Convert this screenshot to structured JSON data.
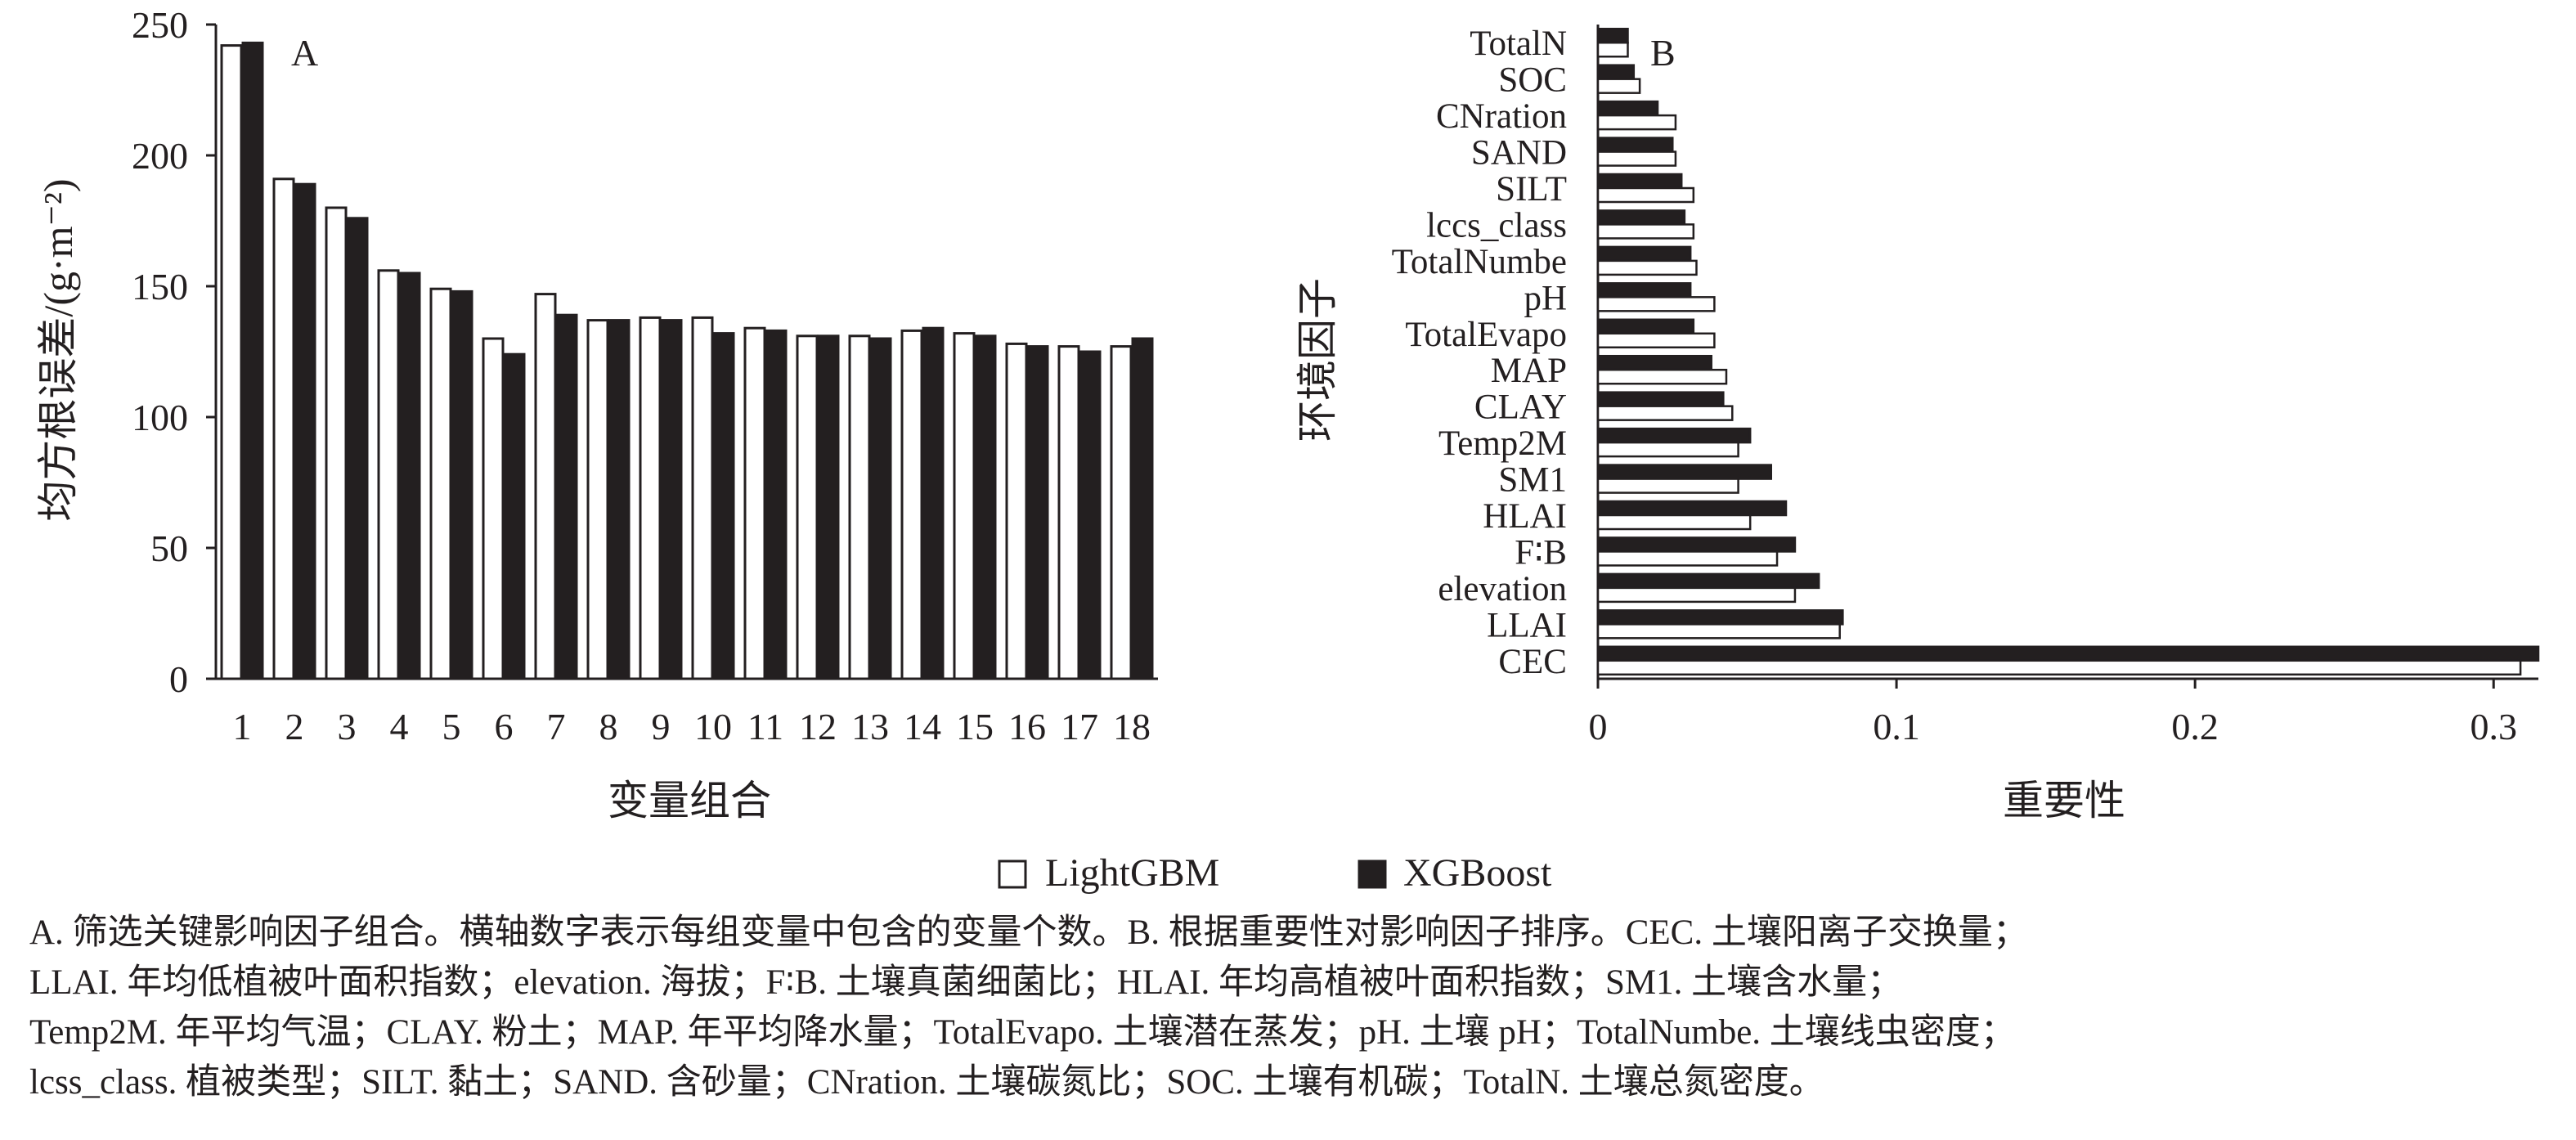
{
  "chart_data": [
    {
      "type": "bar",
      "panel_label": "A",
      "xlabel": "变量组合",
      "ylabel": "均方根误差/(g·m⁻²)",
      "categories": [
        "1",
        "2",
        "3",
        "4",
        "5",
        "6",
        "7",
        "8",
        "9",
        "10",
        "11",
        "12",
        "13",
        "14",
        "15",
        "16",
        "17",
        "18"
      ],
      "ylim": [
        0,
        250
      ],
      "yticks": [
        "0",
        "50",
        "100",
        "150",
        "200",
        "250"
      ],
      "series": [
        {
          "name": "LightGBM",
          "color": "#ffffff",
          "values": [
            242,
            191,
            180,
            156,
            149,
            130,
            147,
            137,
            138,
            138,
            134,
            131,
            131,
            133,
            132,
            128,
            127,
            127
          ]
        },
        {
          "name": "XGBoost",
          "color": "#231f20",
          "values": [
            243,
            189,
            176,
            155,
            148,
            124,
            139,
            137,
            137,
            132,
            133,
            131,
            130,
            134,
            131,
            127,
            125,
            130
          ]
        }
      ]
    },
    {
      "type": "bar",
      "orientation": "horizontal",
      "panel_label": "B",
      "xlabel": "重要性",
      "ylabel": "环境因子",
      "categories": [
        "TotalN",
        "SOC",
        "CNration",
        "SAND",
        "SILT",
        "lccs_class",
        "TotalNumbe",
        "pH",
        "TotalEvapo",
        "MAP",
        "CLAY",
        "Temp2M",
        "SM1",
        "HLAI",
        "F∶B",
        "elevation",
        "LLAI",
        "CEC"
      ],
      "xlim": [
        0,
        0.315
      ],
      "xticks": [
        "0",
        "0.1",
        "0.2",
        "0.3"
      ],
      "series": [
        {
          "name": "XGBoost",
          "color": "#231f20",
          "values": [
            0.01,
            0.012,
            0.02,
            0.025,
            0.028,
            0.029,
            0.031,
            0.031,
            0.032,
            0.038,
            0.042,
            0.051,
            0.058,
            0.063,
            0.066,
            0.074,
            0.082,
            0.315
          ]
        },
        {
          "name": "LightGBM",
          "color": "#ffffff",
          "values": [
            0.01,
            0.014,
            0.026,
            0.026,
            0.032,
            0.032,
            0.033,
            0.039,
            0.039,
            0.043,
            0.045,
            0.047,
            0.047,
            0.051,
            0.06,
            0.066,
            0.081,
            0.309
          ]
        }
      ]
    }
  ],
  "legend": [
    {
      "label": "LightGBM",
      "color": "#ffffff"
    },
    {
      "label": "XGBoost",
      "color": "#231f20"
    }
  ],
  "caption": [
    "A. 筛选关键影响因子组合。横轴数字表示每组变量中包含的变量个数。B. 根据重要性对影响因子排序。CEC. 土壤阳离子交换量；",
    "LLAI. 年均低植被叶面积指数；elevation. 海拔；F∶B. 土壤真菌细菌比；HLAI. 年均高植被叶面积指数；SM1. 土壤含水量；",
    "Temp2M. 年平均气温；CLAY. 粉土；MAP. 年平均降水量；TotalEvapo. 土壤潜在蒸发；pH. 土壤 pH；TotalNumbe. 土壤线虫密度；",
    "lcss_class. 植被类型；SILT. 黏土；SAND. 含砂量；CNration. 土壤碳氮比；SOC. 土壤有机碳；TotalN. 土壤总氮密度。"
  ]
}
